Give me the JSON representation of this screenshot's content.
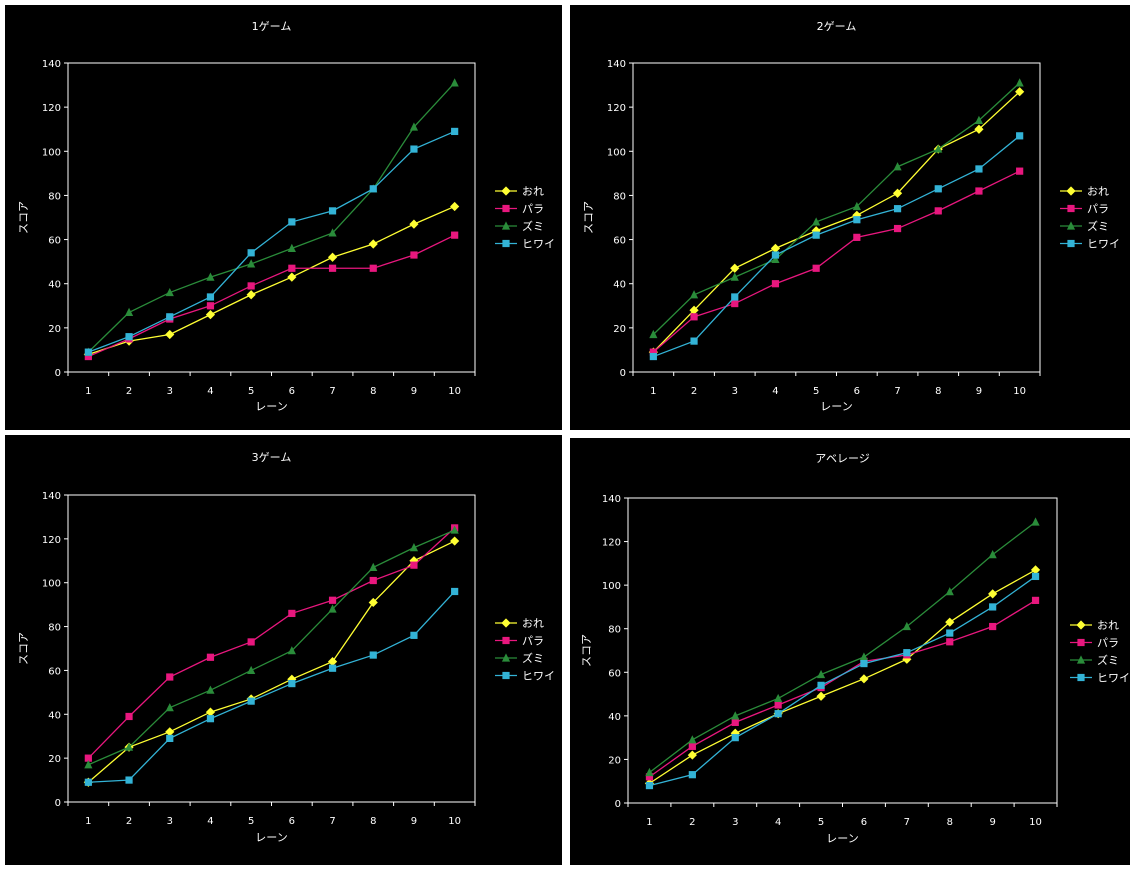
{
  "colors": {
    "background": "#000000",
    "axis": "#ffffff",
    "text": "#ffffff"
  },
  "chart_data": [
    {
      "type": "line",
      "title": "1ゲーム",
      "xlabel": "レーン",
      "ylabel": "スコア",
      "ylim": [
        0,
        140
      ],
      "ytick_step": 20,
      "categories": [
        "1",
        "2",
        "3",
        "4",
        "5",
        "6",
        "7",
        "8",
        "9",
        "10"
      ],
      "legend_position": "right",
      "series": [
        {
          "name": "おれ",
          "color": "#ffff33",
          "marker": "diamond",
          "values": [
            8,
            14,
            17,
            26,
            35,
            43,
            52,
            58,
            67,
            75
          ]
        },
        {
          "name": "パラ",
          "color": "#e8177e",
          "marker": "square",
          "values": [
            7,
            15,
            24,
            30,
            39,
            47,
            47,
            47,
            53,
            62
          ]
        },
        {
          "name": "ズミ",
          "color": "#2a8c3a",
          "marker": "triangle",
          "values": [
            9,
            27,
            36,
            43,
            49,
            56,
            63,
            83,
            111,
            131
          ]
        },
        {
          "name": "ヒワイ",
          "color": "#33b3d6",
          "marker": "square",
          "values": [
            9,
            16,
            25,
            34,
            54,
            68,
            73,
            83,
            101,
            109
          ]
        }
      ]
    },
    {
      "type": "line",
      "title": "2ゲーム",
      "xlabel": "レーン",
      "ylabel": "スコア",
      "ylim": [
        0,
        140
      ],
      "ytick_step": 20,
      "categories": [
        "1",
        "2",
        "3",
        "4",
        "5",
        "6",
        "7",
        "8",
        "9",
        "10"
      ],
      "legend_position": "right",
      "series": [
        {
          "name": "おれ",
          "color": "#ffff33",
          "marker": "diamond",
          "values": [
            9,
            28,
            47,
            56,
            64,
            71,
            81,
            101,
            110,
            127
          ]
        },
        {
          "name": "パラ",
          "color": "#e8177e",
          "marker": "square",
          "values": [
            9,
            25,
            31,
            40,
            47,
            61,
            65,
            73,
            82,
            91
          ]
        },
        {
          "name": "ズミ",
          "color": "#2a8c3a",
          "marker": "triangle",
          "values": [
            17,
            35,
            43,
            51,
            68,
            75,
            93,
            101,
            114,
            131
          ]
        },
        {
          "name": "ヒワイ",
          "color": "#33b3d6",
          "marker": "square",
          "values": [
            7,
            14,
            34,
            53,
            62,
            69,
            74,
            83,
            92,
            107
          ]
        }
      ]
    },
    {
      "type": "line",
      "title": "3ゲーム",
      "xlabel": "レーン",
      "ylabel": "スコア",
      "ylim": [
        0,
        140
      ],
      "ytick_step": 20,
      "categories": [
        "1",
        "2",
        "3",
        "4",
        "5",
        "6",
        "7",
        "8",
        "9",
        "10"
      ],
      "legend_position": "right",
      "series": [
        {
          "name": "おれ",
          "color": "#ffff33",
          "marker": "diamond",
          "values": [
            9,
            25,
            32,
            41,
            47,
            56,
            64,
            91,
            110,
            119
          ]
        },
        {
          "name": "パラ",
          "color": "#e8177e",
          "marker": "square",
          "values": [
            20,
            39,
            57,
            66,
            73,
            86,
            92,
            101,
            108,
            125
          ]
        },
        {
          "name": "ズミ",
          "color": "#2a8c3a",
          "marker": "triangle",
          "values": [
            17,
            25,
            43,
            51,
            60,
            69,
            88,
            107,
            116,
            124
          ]
        },
        {
          "name": "ヒワイ",
          "color": "#33b3d6",
          "marker": "square",
          "values": [
            9,
            10,
            29,
            38,
            46,
            54,
            61,
            67,
            76,
            96
          ]
        }
      ]
    },
    {
      "type": "line",
      "title": "アベレージ",
      "xlabel": "レーン",
      "ylabel": "スコア",
      "ylim": [
        0,
        140
      ],
      "ytick_step": 20,
      "categories": [
        "1",
        "2",
        "3",
        "4",
        "5",
        "6",
        "7",
        "8",
        "9",
        "10"
      ],
      "legend_position": "right",
      "series": [
        {
          "name": "おれ",
          "color": "#ffff33",
          "marker": "diamond",
          "values": [
            9,
            22,
            32,
            41,
            49,
            57,
            66,
            83,
            96,
            107
          ]
        },
        {
          "name": "パラ",
          "color": "#e8177e",
          "marker": "square",
          "values": [
            12,
            26,
            37,
            45,
            53,
            65,
            68,
            74,
            81,
            93
          ]
        },
        {
          "name": "ズミ",
          "color": "#2a8c3a",
          "marker": "triangle",
          "values": [
            14,
            29,
            40,
            48,
            59,
            67,
            81,
            97,
            114,
            129
          ]
        },
        {
          "name": "ヒワイ",
          "color": "#33b3d6",
          "marker": "square",
          "values": [
            8,
            13,
            30,
            41,
            54,
            64,
            69,
            78,
            90,
            104
          ]
        }
      ]
    }
  ]
}
